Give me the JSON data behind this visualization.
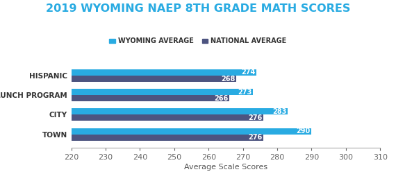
{
  "title": "2019 WYOMING NAEP 8TH GRADE MATH SCORES",
  "title_color": "#29ABE2",
  "title_fontsize": 11.5,
  "title_fontweight": "bold",
  "xlabel": "Average Scale Scores",
  "xlabel_color": "#555555",
  "xlabel_fontsize": 8,
  "categories": [
    "HISPANIC",
    "LUNCH PROGRAM",
    "CITY",
    "TOWN"
  ],
  "wyoming_values": [
    274,
    273,
    283,
    290
  ],
  "national_values": [
    268,
    266,
    276,
    276
  ],
  "wyoming_color": "#29ABE2",
  "national_color": "#4D5480",
  "xlim": [
    220,
    310
  ],
  "xticks": [
    220,
    230,
    240,
    250,
    260,
    270,
    280,
    290,
    300,
    310
  ],
  "bar_height": 0.32,
  "legend_wyoming": "WYOMING AVERAGE",
  "legend_national": "NATIONAL AVERAGE",
  "legend_fontsize": 7,
  "label_fontsize": 7,
  "label_color": "#ffffff",
  "category_fontsize": 7.5,
  "category_color": "#333333",
  "background_color": "#ffffff",
  "tick_color": "#666666",
  "tick_fontsize": 8
}
